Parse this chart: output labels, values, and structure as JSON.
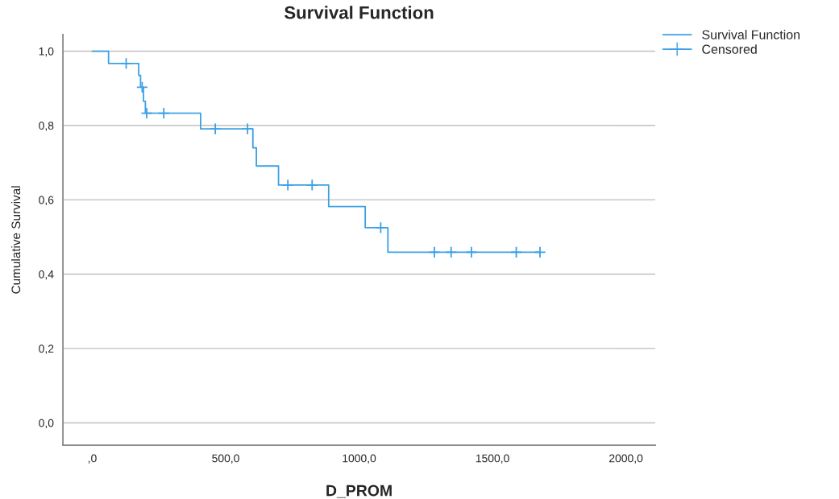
{
  "chart_data": {
    "type": "step",
    "title": "Survival Function",
    "xlabel": "D_PROM",
    "ylabel": "Cumulative Survival",
    "series": [
      {
        "name": "Survival Function",
        "color": "#3ca0e6",
        "marker": "none",
        "x": [
          0,
          61,
          174,
          181,
          192,
          199,
          406,
          602,
          615,
          698,
          886,
          1023,
          1108,
          1678
        ],
        "values": [
          1.0,
          0.967,
          0.935,
          0.903,
          0.865,
          0.833,
          0.791,
          0.74,
          0.691,
          0.64,
          0.582,
          0.525,
          0.459,
          0.459
        ]
      },
      {
        "name": "Censored",
        "type": "scatter",
        "color": "#3ca0e6",
        "marker": "cross",
        "x": [
          127,
          187,
          204,
          268,
          461,
          582,
          733,
          824,
          1081,
          1282,
          1345,
          1421,
          1589,
          1678
        ],
        "values": [
          0.967,
          0.903,
          0.833,
          0.833,
          0.791,
          0.791,
          0.64,
          0.64,
          0.525,
          0.459,
          0.459,
          0.459,
          0.459,
          0.459
        ]
      }
    ],
    "xlim": [
      -110,
      2110
    ],
    "xticks": [
      {
        "value": 0,
        "label": ",0"
      },
      {
        "value": 500,
        "label": "500,0"
      },
      {
        "value": 1000,
        "label": "1000,0"
      },
      {
        "value": 1500,
        "label": "1500,0"
      },
      {
        "value": 2000,
        "label": "2000,0"
      }
    ],
    "ylim": [
      -0.06,
      1.045
    ],
    "yticks": [
      {
        "value": 0,
        "label": "0,0"
      },
      {
        "value": 0.2,
        "label": "0,2"
      },
      {
        "value": 0.4,
        "label": "0,4"
      },
      {
        "value": 0.6,
        "label": "0,6"
      },
      {
        "value": 0.8,
        "label": "0,8"
      },
      {
        "value": 1.0,
        "label": "1,0"
      }
    ],
    "grid": "y",
    "legend": "top right"
  }
}
